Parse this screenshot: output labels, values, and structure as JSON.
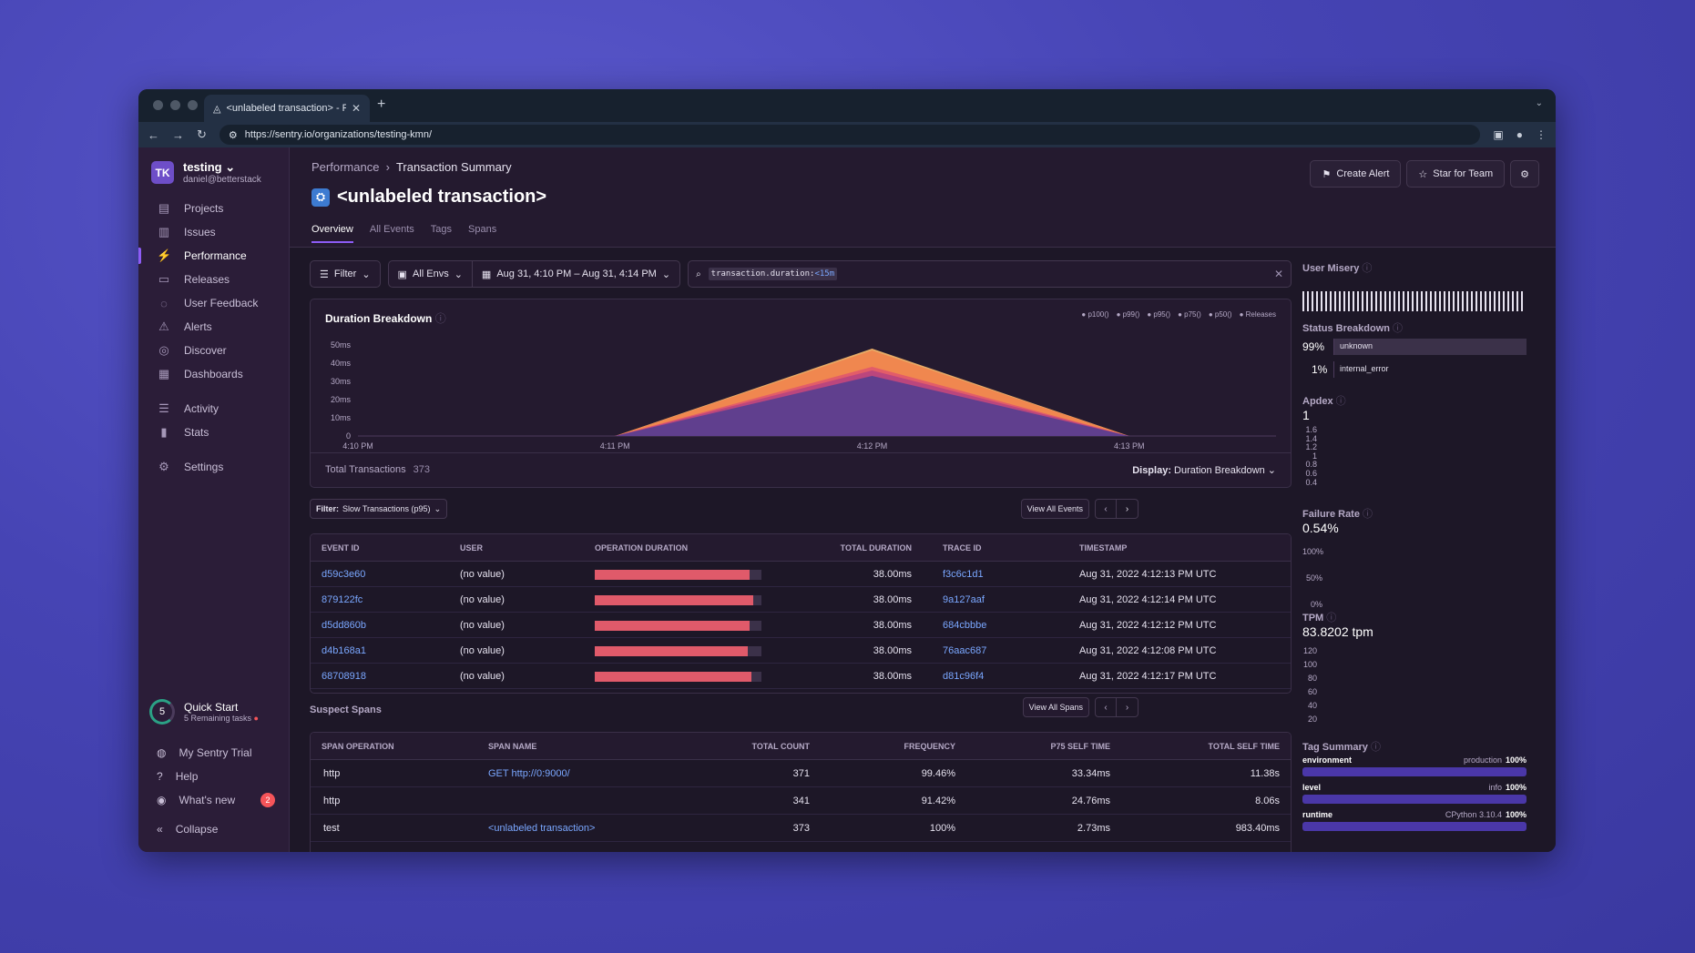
{
  "browser": {
    "tab_title": "<unlabeled transaction> - Perf",
    "url": "https://sentry.io/organizations/testing-kmn/"
  },
  "sidebar": {
    "org_initials": "TK",
    "org_name": "testing",
    "org_email": "daniel@betterstack",
    "items": [
      {
        "label": "Projects",
        "icon": "projects-icon"
      },
      {
        "label": "Issues",
        "icon": "issues-icon"
      },
      {
        "label": "Performance",
        "icon": "performance-icon"
      },
      {
        "label": "Releases",
        "icon": "releases-icon"
      },
      {
        "label": "User Feedback",
        "icon": "feedback-icon"
      },
      {
        "label": "Alerts",
        "icon": "alerts-icon"
      },
      {
        "label": "Discover",
        "icon": "discover-icon"
      },
      {
        "label": "Dashboards",
        "icon": "dashboards-icon"
      },
      {
        "label": "Activity",
        "icon": "activity-icon"
      },
      {
        "label": "Stats",
        "icon": "stats-icon"
      },
      {
        "label": "Settings",
        "icon": "settings-icon"
      }
    ],
    "quick_start": {
      "count": "5",
      "title": "Quick Start",
      "subtitle": "5 Remaining tasks"
    },
    "bottom": [
      {
        "label": "My Sentry Trial"
      },
      {
        "label": "Help"
      },
      {
        "label": "What's new",
        "badge": "2"
      },
      {
        "label": "Collapse"
      }
    ]
  },
  "header": {
    "crumb_parent": "Performance",
    "crumb_current": "Transaction Summary",
    "title": "<unlabeled transaction>",
    "tabs": [
      "Overview",
      "All Events",
      "Tags",
      "Spans"
    ],
    "create_alert": "Create Alert",
    "star_team": "Star for Team"
  },
  "filters": {
    "filter": "Filter",
    "env": "All Envs",
    "date": "Aug 31, 4:10 PM – Aug 31, 4:14 PM",
    "query_key": "transaction.duration:",
    "query_val": "<15m"
  },
  "chart": {
    "title": "Duration Breakdown",
    "legend": [
      "p100()",
      "p99()",
      "p95()",
      "p75()",
      "p50()",
      "Releases"
    ],
    "total_label": "Total Transactions",
    "total_value": "373",
    "display_label": "Display:",
    "display_value": "Duration Breakdown"
  },
  "chart_data": {
    "type": "area",
    "title": "Duration Breakdown",
    "x": [
      "4:10 PM",
      "4:11 PM",
      "4:12 PM",
      "4:13 PM"
    ],
    "y_ticks": [
      "0",
      "10ms",
      "20ms",
      "30ms",
      "40ms",
      "50ms"
    ],
    "ylim": [
      0,
      50
    ],
    "series": [
      {
        "name": "p100()",
        "values": [
          0,
          0,
          48,
          0
        ]
      },
      {
        "name": "p99()",
        "values": [
          0,
          0,
          47,
          0
        ]
      },
      {
        "name": "p95()",
        "values": [
          0,
          0,
          38,
          0
        ]
      },
      {
        "name": "p75()",
        "values": [
          0,
          0,
          36,
          0
        ]
      },
      {
        "name": "p50()",
        "values": [
          0,
          0,
          33,
          0
        ]
      }
    ],
    "colors": [
      "#f2b46a",
      "#f0854e",
      "#e05a6a",
      "#b8447e",
      "#5b3f8f"
    ]
  },
  "events": {
    "filter_label": "Filter:",
    "filter_value": "Slow Transactions (p95)",
    "view_all": "View All Events",
    "columns": [
      "EVENT ID",
      "USER",
      "OPERATION DURATION",
      "TOTAL DURATION",
      "TRACE ID",
      "TIMESTAMP"
    ],
    "rows": [
      {
        "id": "d59c3e60",
        "user": "(no value)",
        "pct": 0.93,
        "total": "38.00ms",
        "trace": "f3c6c1d1",
        "ts": "Aug 31, 2022 4:12:13 PM UTC"
      },
      {
        "id": "879122fc",
        "user": "(no value)",
        "pct": 0.95,
        "total": "38.00ms",
        "trace": "9a127aaf",
        "ts": "Aug 31, 2022 4:12:14 PM UTC"
      },
      {
        "id": "d5dd860b",
        "user": "(no value)",
        "pct": 0.93,
        "total": "38.00ms",
        "trace": "684cbbbe",
        "ts": "Aug 31, 2022 4:12:12 PM UTC"
      },
      {
        "id": "d4b168a1",
        "user": "(no value)",
        "pct": 0.92,
        "total": "38.00ms",
        "trace": "76aac687",
        "ts": "Aug 31, 2022 4:12:08 PM UTC"
      },
      {
        "id": "68708918",
        "user": "(no value)",
        "pct": 0.94,
        "total": "38.00ms",
        "trace": "d81c96f4",
        "ts": "Aug 31, 2022 4:12:17 PM UTC"
      }
    ]
  },
  "spans": {
    "title": "Suspect Spans",
    "view_all": "View All Spans",
    "columns": [
      "SPAN OPERATION",
      "SPAN NAME",
      "TOTAL COUNT",
      "FREQUENCY",
      "P75 SELF TIME",
      "TOTAL SELF TIME"
    ],
    "rows": [
      {
        "op": "http",
        "name": "GET http://0:9000/",
        "count": "371",
        "freq": "99.46%",
        "p75": "33.34ms",
        "total": "11.38s"
      },
      {
        "op": "http",
        "name": "",
        "count": "341",
        "freq": "91.42%",
        "p75": "24.76ms",
        "total": "8.06s"
      },
      {
        "op": "test",
        "name": "<unlabeled transaction>",
        "count": "373",
        "freq": "100%",
        "p75": "2.73ms",
        "total": "983.40ms"
      }
    ]
  },
  "right": {
    "user_misery": "User Misery",
    "status_breakdown": "Status Breakdown",
    "status": [
      {
        "pct": "99%",
        "label": "unknown",
        "share": 0.99
      },
      {
        "pct": "1%",
        "label": "internal_error",
        "share": 0.01
      }
    ],
    "apdex_label": "Apdex",
    "apdex_value": "1",
    "apdex_ticks": [
      "1.6",
      "1.4",
      "1.2",
      "1",
      "0.8",
      "0.6",
      "0.4"
    ],
    "failure_label": "Failure Rate",
    "failure_value": "0.54%",
    "failure_ticks": [
      "100%",
      "50%",
      "0%"
    ],
    "tpm_label": "TPM",
    "tpm_value": "83.8202 tpm",
    "tpm_ticks": [
      "120",
      "100",
      "80",
      "60",
      "40",
      "20"
    ],
    "tag_summary": "Tag Summary",
    "tags": [
      {
        "key": "environment",
        "value": "production",
        "pct": "100%"
      },
      {
        "key": "level",
        "value": "info",
        "pct": "100%"
      },
      {
        "key": "runtime",
        "value": "CPython 3.10.4",
        "pct": "100%"
      }
    ]
  }
}
